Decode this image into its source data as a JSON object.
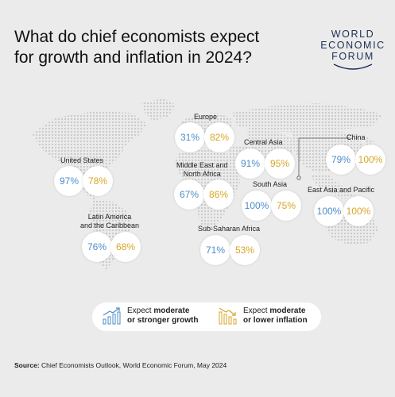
{
  "title": {
    "line1": "What do chief economists expect",
    "line2": "for growth and inflation in 2024?"
  },
  "logo": {
    "line1": "WORLD",
    "line2": "ECONOMIC",
    "line3": "FORUM"
  },
  "colors": {
    "growth": "#4b8ec9",
    "inflation": "#d8a528",
    "background": "#ebebeb"
  },
  "regions": [
    {
      "id": "us",
      "label_lines": [
        "United States"
      ],
      "growth": "97%",
      "inflation": "78%"
    },
    {
      "id": "latam",
      "label_lines": [
        "Latin America",
        "and the Caribbean"
      ],
      "growth": "76%",
      "inflation": "68%"
    },
    {
      "id": "europe",
      "label_lines": [
        "Europe"
      ],
      "growth": "31%",
      "inflation": "82%"
    },
    {
      "id": "mena",
      "label_lines": [
        "Middle East and",
        "North Africa"
      ],
      "growth": "67%",
      "inflation": "86%"
    },
    {
      "id": "central-asia",
      "label_lines": [
        "Central Asia"
      ],
      "growth": "91%",
      "inflation": "95%"
    },
    {
      "id": "south-asia",
      "label_lines": [
        "South Asia"
      ],
      "growth": "100%",
      "inflation": "75%"
    },
    {
      "id": "ssa",
      "label_lines": [
        "Sub-Saharan Africa"
      ],
      "growth": "71%",
      "inflation": "53%"
    },
    {
      "id": "china",
      "label_lines": [
        "China"
      ],
      "growth": "79%",
      "inflation": "100%"
    },
    {
      "id": "eap",
      "label_lines": [
        "East Asia and Pacific"
      ],
      "growth": "100%",
      "inflation": "100%"
    }
  ],
  "legend": {
    "growth": {
      "line1_plain": "Expect ",
      "line1_bold": "moderate",
      "line2_bold": "or stronger growth",
      "icon": "bar-chart-up-icon"
    },
    "inflation": {
      "line1_plain": "Expect ",
      "line1_bold": "moderate",
      "line2_bold": "or lower inflation",
      "icon": "bar-chart-down-icon"
    }
  },
  "source": {
    "label": "Source:",
    "text": " Chief Economists Outlook, World Economic Forum, May 2024"
  }
}
